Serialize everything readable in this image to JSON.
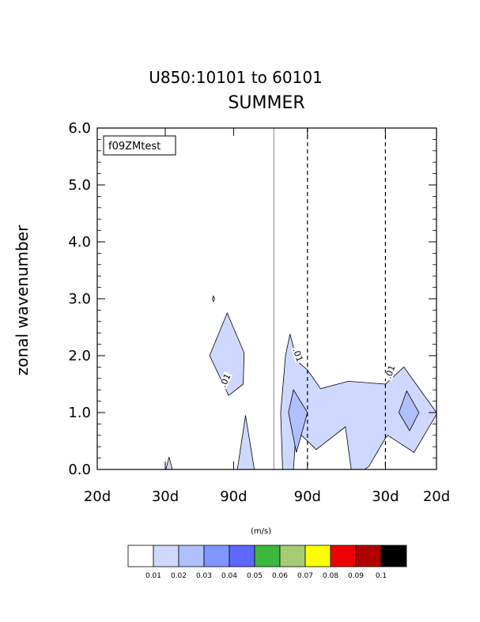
{
  "chart_data": {
    "type": "contour",
    "title": "U850:10101 to 60101",
    "subtitle": "SUMMER",
    "ylabel": "zonal wavenumber",
    "ylim": [
      0,
      6
    ],
    "yticks": [
      "0.0",
      "1.0",
      "2.0",
      "3.0",
      "4.0",
      "5.0",
      "6.0"
    ],
    "xticks": [
      "20d",
      "30d",
      "90d",
      "90d",
      "30d",
      "20d"
    ],
    "case_label": "f09ZMtest",
    "contour_labels": [
      ".01",
      ".01",
      ".01"
    ],
    "colorbar": {
      "unit": "(m/s)",
      "levels": [
        "0.01",
        "0.02",
        "0.03",
        "0.04",
        "0.05",
        "0.06",
        "0.07",
        "0.08",
        "0.09",
        "0.1"
      ],
      "colors": [
        "#ffffff",
        "#cfd9ff",
        "#b0c0ff",
        "#7f97ff",
        "#5f66ff",
        "#3cb83c",
        "#a8cc73",
        "#ffff00",
        "#ee0000",
        "#b00000",
        "#000000"
      ]
    },
    "regions": [
      {
        "level": 1,
        "points": [
          [
            0,
            3.25
          ],
          [
            0,
            2.0
          ],
          [
            0,
            0.75
          ]
        ]
      },
      {
        "level": 1,
        "points": [
          [
            2.35,
            0.0
          ],
          [
            2.46,
            0.22
          ],
          [
            2.57,
            0.0
          ]
        ]
      },
      {
        "level": 1,
        "points": [
          [
            3.98,
            3.05
          ],
          [
            4.02,
            3.0
          ],
          [
            3.98,
            2.95
          ],
          [
            3.94,
            3.0
          ]
        ]
      },
      {
        "level": 1,
        "points": [
          [
            3.85,
            2.0
          ],
          [
            4.45,
            2.75
          ],
          [
            5.03,
            2.05
          ],
          [
            5.0,
            1.5
          ],
          [
            4.5,
            1.3
          ]
        ]
      },
      {
        "level": 1,
        "points": [
          [
            4.8,
            0.0
          ],
          [
            5.08,
            0.95
          ],
          [
            5.38,
            0.0
          ]
        ]
      },
      {
        "level": 1,
        "points": [
          [
            6.28,
            1.0
          ],
          [
            6.45,
            2.0
          ],
          [
            6.6,
            2.38
          ],
          [
            6.85,
            1.9
          ],
          [
            7.2,
            1.75
          ],
          [
            7.65,
            1.42
          ],
          [
            8.6,
            1.55
          ],
          [
            9.87,
            1.5
          ],
          [
            10.5,
            1.8
          ],
          [
            11.62,
            1.0
          ],
          [
            11.62,
            0.97
          ],
          [
            10.85,
            0.3
          ],
          [
            9.95,
            0.6
          ],
          [
            9.87,
            0.55
          ],
          [
            9.3,
            0.05
          ],
          [
            9.15,
            0.0
          ],
          [
            8.7,
            0.0
          ],
          [
            8.5,
            0.75
          ],
          [
            7.5,
            0.35
          ],
          [
            7.0,
            0.6
          ],
          [
            6.78,
            0.45
          ],
          [
            6.72,
            0.0
          ],
          [
            6.35,
            0.0
          ]
        ]
      },
      {
        "level": 2,
        "points": [
          [
            6.72,
            1.4
          ],
          [
            7.2,
            1.0
          ],
          [
            6.82,
            0.3
          ],
          [
            6.55,
            1.0
          ]
        ]
      },
      {
        "level": 2,
        "points": [
          [
            10.6,
            1.38
          ],
          [
            11.02,
            1.0
          ],
          [
            10.7,
            0.68
          ],
          [
            10.33,
            1.0
          ]
        ]
      }
    ],
    "solid_vlines_x": [
      6.05
    ],
    "dashed_vlines_x": [
      7.2,
      9.87
    ],
    "x_tick_positions": [
      0,
      2.33,
      4.67,
      7.2,
      9.87,
      11.62
    ]
  }
}
